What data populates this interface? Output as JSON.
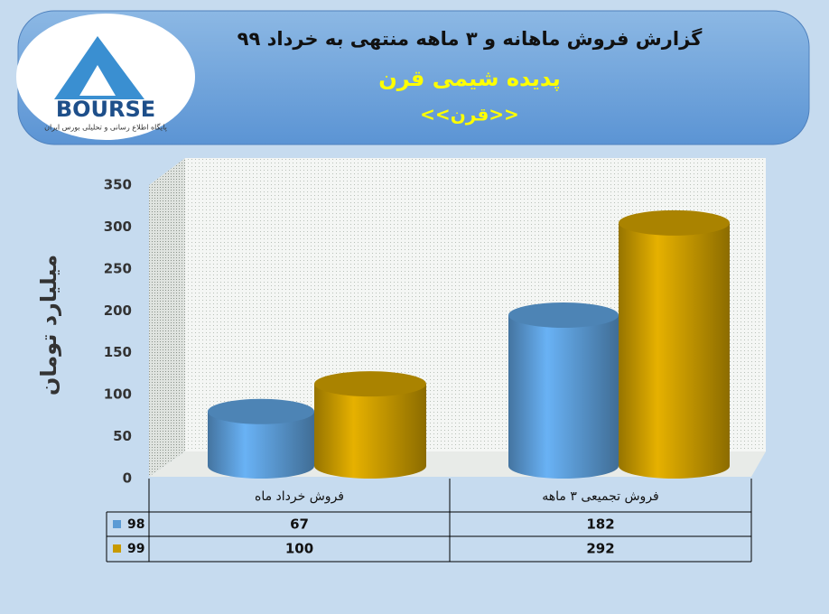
{
  "logo": {
    "text": "BOURSE",
    "subtitle": "پایگاه اطلاع رسانی و تحلیلی بورس ایران"
  },
  "chart_data": {
    "type": "bar",
    "title": "گزارش فروش ماهانه و ۳ ماهه منتهی به خرداد ۹۹",
    "subtitle": "پدیده شیمی قرن",
    "annotation": "<<قرن>>",
    "y_label": "میلیارد تومان",
    "categories": [
      "فروش خرداد  ماه",
      "فروش تجمیعی ۳ ماهه"
    ],
    "series": [
      {
        "name": "98",
        "color": "#5b9bd5",
        "values": [
          67,
          182
        ]
      },
      {
        "name": "99",
        "color": "#c89a00",
        "values": [
          100,
          292
        ]
      }
    ],
    "ylim": [
      0,
      350
    ],
    "yticks": [
      0,
      50,
      100,
      150,
      200,
      250,
      300,
      350
    ]
  }
}
